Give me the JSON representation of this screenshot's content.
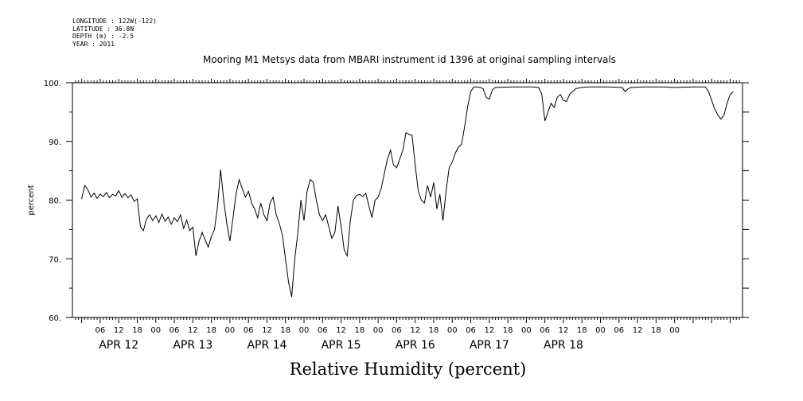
{
  "meta": {
    "longitude": "LONGITUDE : 122W(-122)",
    "latitude": "LATITUDE : 36.8N",
    "depth": "DEPTH (m) : -2.5",
    "year": "YEAR : 2011"
  },
  "chart_data": {
    "type": "line",
    "title": "Mooring M1 Metsys data from MBARI instrument id 1396 at original sampling intervals",
    "xlabel": "Relative Humidity (percent)",
    "ylabel": "percent",
    "ylim": [
      60,
      100
    ],
    "yticks": [
      60,
      70,
      80,
      90,
      100
    ],
    "ytick_labels": [
      "60.",
      "70.",
      "80.",
      "90.",
      "100."
    ],
    "x_unit": "hours since APR 12 00:00",
    "xlim": [
      -3,
      214
    ],
    "hour_ticks": [
      "06",
      "12",
      "18",
      "00",
      "06",
      "12",
      "18",
      "00",
      "06",
      "12",
      "18",
      "00",
      "06",
      "12",
      "18",
      "00",
      "06",
      "12",
      "18",
      "00",
      "06",
      "12",
      "18",
      "00",
      "06",
      "12",
      "18",
      "00",
      "06",
      "12",
      "18",
      "00"
    ],
    "day_labels": [
      "APR 12",
      "APR 13",
      "APR 14",
      "APR 15",
      "APR 16",
      "APR 17",
      "APR 18"
    ],
    "grid": false,
    "series": [
      {
        "values": [
          [
            0,
            80.2
          ],
          [
            1,
            82.5
          ],
          [
            2,
            81.8
          ],
          [
            3,
            80.5
          ],
          [
            4,
            81.2
          ],
          [
            5,
            80.3
          ],
          [
            6,
            81.0
          ],
          [
            7,
            80.6
          ],
          [
            8,
            81.3
          ],
          [
            9,
            80.4
          ],
          [
            10,
            81.0
          ],
          [
            11,
            80.7
          ],
          [
            12,
            81.6
          ],
          [
            13,
            80.5
          ],
          [
            14,
            81.1
          ],
          [
            15,
            80.4
          ],
          [
            16,
            80.9
          ],
          [
            17,
            79.8
          ],
          [
            18,
            80.2
          ],
          [
            19,
            75.5
          ],
          [
            20,
            74.8
          ],
          [
            21,
            76.8
          ],
          [
            22,
            77.5
          ],
          [
            23,
            76.5
          ],
          [
            24,
            77.3
          ],
          [
            25,
            76.2
          ],
          [
            26,
            77.6
          ],
          [
            27,
            76.4
          ],
          [
            28,
            77.1
          ],
          [
            29,
            75.9
          ],
          [
            30,
            77.0
          ],
          [
            31,
            76.3
          ],
          [
            32,
            77.5
          ],
          [
            33,
            75.2
          ],
          [
            34,
            76.6
          ],
          [
            35,
            74.8
          ],
          [
            36,
            75.4
          ],
          [
            37,
            70.5
          ],
          [
            38,
            73.0
          ],
          [
            39,
            74.5
          ],
          [
            40,
            73.2
          ],
          [
            41,
            72.0
          ],
          [
            42,
            73.8
          ],
          [
            43,
            75.0
          ],
          [
            44,
            79.0
          ],
          [
            45,
            85.2
          ],
          [
            46,
            80.0
          ],
          [
            47,
            76.0
          ],
          [
            48,
            73.0
          ],
          [
            49,
            77.0
          ],
          [
            50,
            81.0
          ],
          [
            51,
            83.5
          ],
          [
            52,
            82.0
          ],
          [
            53,
            80.5
          ],
          [
            54,
            81.5
          ],
          [
            55,
            79.5
          ],
          [
            56,
            78.5
          ],
          [
            57,
            77.0
          ],
          [
            58,
            79.5
          ],
          [
            59,
            77.5
          ],
          [
            60,
            76.5
          ],
          [
            61,
            79.5
          ],
          [
            62,
            80.5
          ],
          [
            63,
            77.5
          ],
          [
            64,
            76.0
          ],
          [
            65,
            74.0
          ],
          [
            66,
            70.0
          ],
          [
            67,
            66.0
          ],
          [
            68,
            63.5
          ],
          [
            69,
            70.0
          ],
          [
            70,
            74.5
          ],
          [
            71,
            80.0
          ],
          [
            72,
            76.5
          ],
          [
            73,
            81.5
          ],
          [
            74,
            83.5
          ],
          [
            75,
            83.0
          ],
          [
            76,
            80.0
          ],
          [
            77,
            77.5
          ],
          [
            78,
            76.5
          ],
          [
            79,
            77.5
          ],
          [
            80,
            75.5
          ],
          [
            81,
            73.5
          ],
          [
            82,
            74.5
          ],
          [
            83,
            79.0
          ],
          [
            84,
            75.5
          ],
          [
            85,
            71.5
          ],
          [
            86,
            70.5
          ],
          [
            87,
            76.5
          ],
          [
            88,
            80.0
          ],
          [
            89,
            80.8
          ],
          [
            90,
            81.0
          ],
          [
            91,
            80.6
          ],
          [
            92,
            81.2
          ],
          [
            93,
            79.0
          ],
          [
            94,
            77.0
          ],
          [
            95,
            80.0
          ],
          [
            96,
            80.5
          ],
          [
            97,
            82.0
          ],
          [
            98,
            84.5
          ],
          [
            99,
            87.0
          ],
          [
            100,
            88.5
          ],
          [
            101,
            86.0
          ],
          [
            102,
            85.5
          ],
          [
            103,
            87.0
          ],
          [
            104,
            88.5
          ],
          [
            105,
            91.5
          ],
          [
            106,
            91.2
          ],
          [
            107,
            91.0
          ],
          [
            108,
            86.0
          ],
          [
            109,
            81.5
          ],
          [
            110,
            80.0
          ],
          [
            111,
            79.5
          ],
          [
            112,
            82.5
          ],
          [
            113,
            80.5
          ],
          [
            114,
            83.0
          ],
          [
            115,
            78.5
          ],
          [
            116,
            81.0
          ],
          [
            117,
            76.5
          ],
          [
            118,
            81.5
          ],
          [
            119,
            85.5
          ],
          [
            120,
            86.5
          ],
          [
            121,
            88.0
          ],
          [
            122,
            89.0
          ],
          [
            123,
            89.5
          ],
          [
            124,
            92.5
          ],
          [
            125,
            96.0
          ],
          [
            126,
            98.5
          ],
          [
            127,
            99.3
          ],
          [
            128,
            99.3
          ],
          [
            129,
            99.2
          ],
          [
            130,
            99.0
          ],
          [
            131,
            97.5
          ],
          [
            132,
            97.2
          ],
          [
            133,
            98.8
          ],
          [
            134,
            99.2
          ],
          [
            140,
            99.3
          ],
          [
            146,
            99.3
          ],
          [
            148,
            99.2
          ],
          [
            149,
            98.0
          ],
          [
            150,
            93.5
          ],
          [
            151,
            95.0
          ],
          [
            152,
            96.5
          ],
          [
            153,
            95.8
          ],
          [
            154,
            97.5
          ],
          [
            155,
            98.0
          ],
          [
            156,
            97.0
          ],
          [
            157,
            96.8
          ],
          [
            158,
            98.0
          ],
          [
            159,
            98.5
          ],
          [
            160,
            99.0
          ],
          [
            162,
            99.2
          ],
          [
            164,
            99.3
          ],
          [
            170,
            99.3
          ],
          [
            175,
            99.2
          ],
          [
            176,
            98.5
          ],
          [
            177,
            99.0
          ],
          [
            178,
            99.2
          ],
          [
            182,
            99.3
          ],
          [
            188,
            99.3
          ],
          [
            192,
            99.2
          ],
          [
            198,
            99.3
          ],
          [
            202,
            99.3
          ],
          [
            203,
            98.5
          ],
          [
            204,
            97.0
          ],
          [
            205,
            95.5
          ],
          [
            206,
            94.5
          ],
          [
            207,
            93.8
          ],
          [
            208,
            94.5
          ],
          [
            209,
            96.5
          ],
          [
            210,
            98.0
          ],
          [
            211,
            98.5
          ]
        ]
      }
    ]
  }
}
